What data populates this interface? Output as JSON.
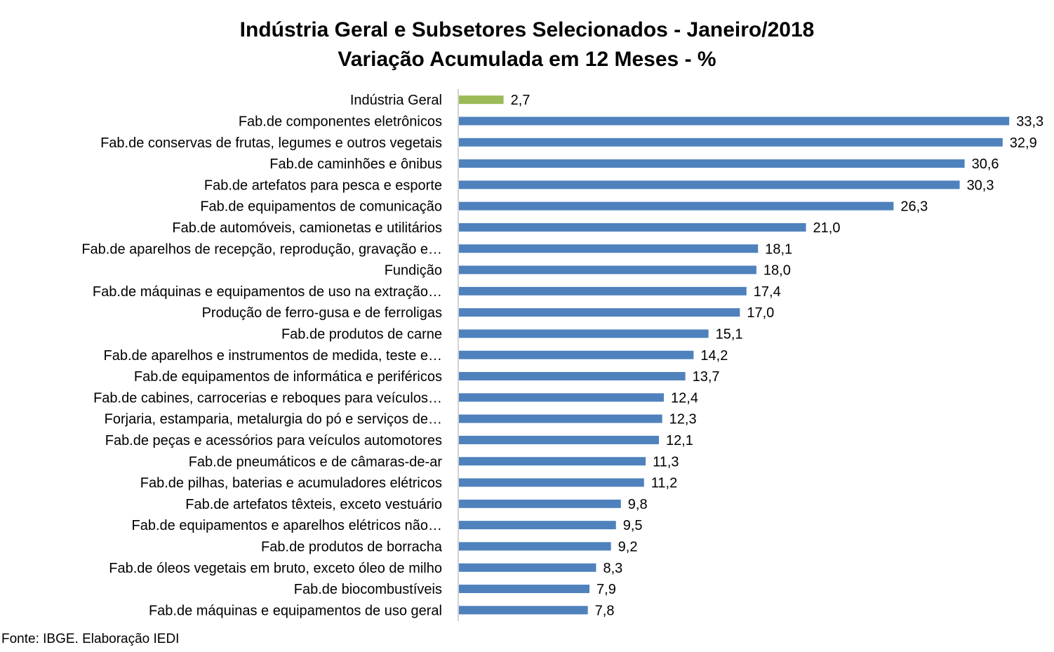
{
  "chart_data": {
    "type": "bar",
    "orientation": "horizontal",
    "title": "Indústria Geral e Subsetores Selecionados - Janeiro/2018",
    "subtitle": "Variação Acumulada em 12 Meses - %",
    "xlim": [
      0,
      35
    ],
    "grid": false,
    "legend": "none",
    "colors": {
      "highlight": "#9BBB59",
      "default": "#4F81BD",
      "axis": "#A6A6A6"
    },
    "categories": [
      "Indústria Geral",
      "Fab.de componentes eletrônicos",
      "Fab.de conservas de frutas, legumes e outros vegetais",
      "Fab.de caminhões e ônibus",
      "Fab.de artefatos para pesca e esporte",
      "Fab.de equipamentos de comunicação",
      "Fab.de automóveis, camionetas e utilitários",
      "Fab.de aparelhos de recepção, reprodução, gravação e…",
      "Fundição",
      "Fab.de máquinas e equipamentos de uso na extração…",
      "Produção de ferro-gusa e de ferroligas",
      "Fab.de produtos de carne",
      "Fab.de aparelhos e instrumentos de medida, teste e…",
      "Fab.de equipamentos de informática e periféricos",
      "Fab.de cabines, carrocerias e reboques para veículos…",
      "Forjaria, estamparia, metalurgia do pó e serviços de…",
      "Fab.de peças e acessórios para veículos automotores",
      "Fab.de pneumáticos e de câmaras-de-ar",
      "Fab.de pilhas, baterias e acumuladores elétricos",
      "Fab.de artefatos têxteis, exceto vestuário",
      "Fab.de equipamentos e aparelhos elétricos não…",
      "Fab.de produtos de borracha",
      "Fab.de óleos vegetais em bruto, exceto óleo de milho",
      "Fab.de biocombustíveis",
      "Fab.de máquinas e equipamentos de uso geral"
    ],
    "values": [
      2.7,
      33.3,
      32.9,
      30.6,
      30.3,
      26.3,
      21.0,
      18.1,
      18.0,
      17.4,
      17.0,
      15.1,
      14.2,
      13.7,
      12.4,
      12.3,
      12.1,
      11.3,
      11.2,
      9.8,
      9.5,
      9.2,
      8.3,
      7.9,
      7.8
    ],
    "value_labels": [
      "2,7",
      "33,3",
      "32,9",
      "30,6",
      "30,3",
      "26,3",
      "21,0",
      "18,1",
      "18,0",
      "17,4",
      "17,0",
      "15,1",
      "14,2",
      "13,7",
      "12,4",
      "12,3",
      "12,1",
      "11,3",
      "11,2",
      "9,8",
      "9,5",
      "9,2",
      "8,3",
      "7,9",
      "7,8"
    ],
    "highlight_index": 0
  },
  "source": "Fonte: IBGE. Elaboração IEDI"
}
